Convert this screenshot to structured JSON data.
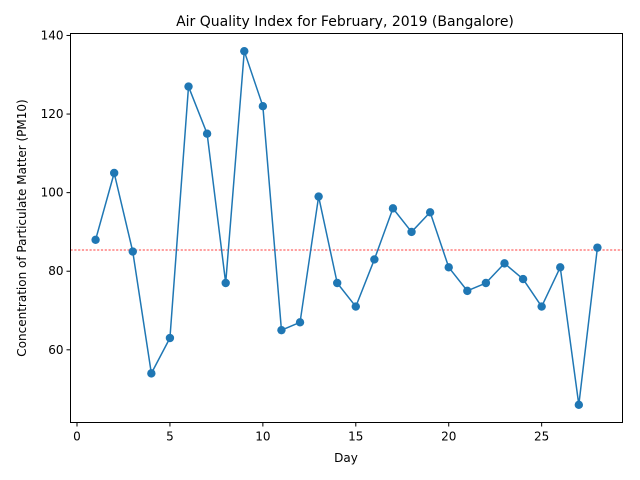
{
  "chart_data": {
    "type": "line",
    "title": "Air Quality Index for February, 2019 (Bangalore)",
    "xlabel": "Day",
    "ylabel": "Concentration of Particulate Matter (PM10)",
    "xlim": [
      -0.35,
      29.35
    ],
    "ylim": [
      41.5,
      140.5
    ],
    "xticks": [
      0,
      5,
      10,
      15,
      20,
      25
    ],
    "yticks": [
      60,
      80,
      100,
      120,
      140
    ],
    "grid": false,
    "line_color": "#1f77b4",
    "reference_line": {
      "y": 85.4,
      "color": "#ff0000",
      "style": "dashed"
    },
    "series": [
      {
        "x": [
          1,
          2,
          3,
          4,
          5,
          6,
          7,
          8,
          9,
          10,
          11,
          12,
          13,
          14,
          15,
          16,
          17,
          18,
          19,
          20,
          21,
          22,
          23,
          24,
          25,
          26,
          27,
          28
        ],
        "values": [
          88,
          105,
          85,
          54,
          63,
          127,
          115,
          77,
          136,
          122,
          65,
          67,
          99,
          77,
          71,
          83,
          96,
          90,
          95,
          81,
          75,
          77,
          82,
          78,
          71,
          81,
          46,
          86
        ]
      }
    ]
  }
}
